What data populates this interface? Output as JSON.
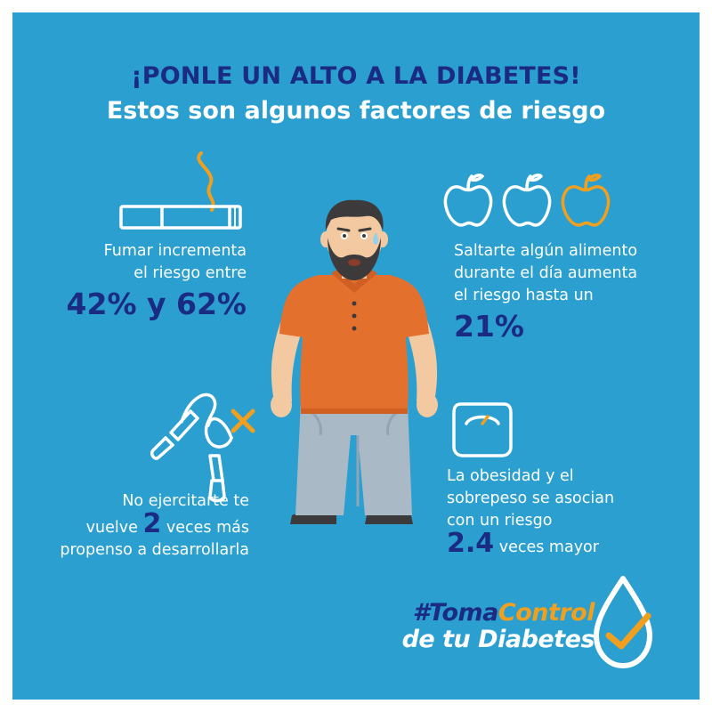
{
  "header": {
    "title": "¡PONLE UN ALTO A LA DIABETES!",
    "subtitle": "Estos son algunos factores de riesgo"
  },
  "facts": {
    "smoking": {
      "line1": "Fumar incrementa",
      "line2": "el riesgo entre",
      "value": "42% y 62%",
      "icon": "cigarette-icon"
    },
    "skip_meal": {
      "line1": "Saltarte algún alimento",
      "line2": "durante el día aumenta",
      "line3": "el riesgo hasta un",
      "value": "21%",
      "icon": "apple-icon"
    },
    "no_exercise": {
      "line1": "No ejercitarte te",
      "pre": "vuelve",
      "value": "2",
      "post": "veces más",
      "line3": "propenso a desarrollarla",
      "icon": "jump-rope-icon"
    },
    "obesity": {
      "line1": "La obesidad y el",
      "line2": "sobrepeso se asocian",
      "line3": "con un riesgo",
      "value": "2.4",
      "post": "veces mayor",
      "icon": "scale-icon"
    }
  },
  "brand": {
    "hash_part": "#Toma",
    "control_part": "Control",
    "line2": "de tu Diabetes",
    "icon": "drop-check-icon"
  },
  "colors": {
    "background": "#2a9fd0",
    "navy": "#1b2b83",
    "orange": "#f0a01e",
    "shirt": "#e4702e",
    "pants": "#a9b9c6"
  }
}
